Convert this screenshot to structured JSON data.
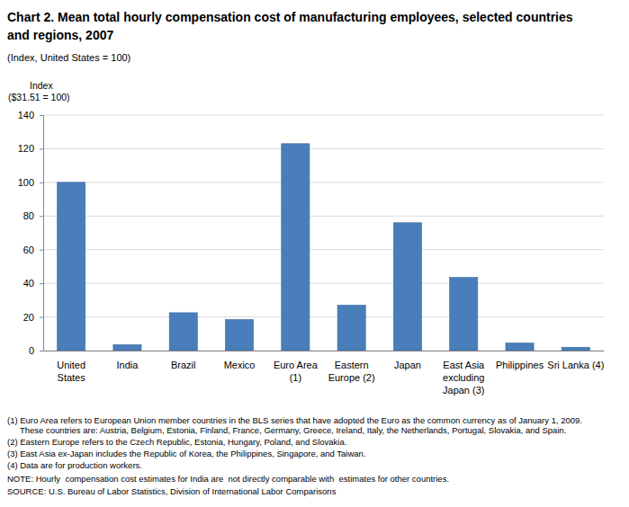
{
  "chart_data": {
    "type": "bar",
    "title": "Chart 2.  Mean total hourly compensation cost of manufacturing employees, selected countries\nand regions, 2007",
    "subtitle": "(Index, United States = 100)",
    "y_label": [
      "Index",
      "($31.51 = 100)"
    ],
    "categories": [
      "United\nStates",
      "India",
      "Brazil",
      "Mexico",
      "Euro Area\n(1)",
      "Eastern\nEurope (2)",
      "Japan",
      "East Asia\nexcluding\nJapan (3)",
      "Philippines",
      "Sri Lanka (4)"
    ],
    "values": [
      100,
      3.5,
      22.5,
      18.5,
      123,
      27,
      76,
      43.5,
      4.5,
      2
    ],
    "color": "#4a7ebb",
    "ylim": [
      0,
      140
    ],
    "yticks": [
      0,
      20,
      40,
      60,
      80,
      100,
      120,
      140
    ],
    "grid": true,
    "notes": [
      "(1) Euro Area refers to European Union member countries in the BLS series that have adopted the Euro as the common currency as of January 1, 2009.",
      "These countries are: Austria, Belgium, Estonia, Finland, France, Germany, Greece, Ireland, Italy, the Netherlands, Portugal, Slovakia, and Spain.",
      "(2) Eastern Europe refers to the Czech Republic, Estonia, Hungary, Poland, and Slovakia.",
      "(3) East Asia ex-Japan includes the Republic of Korea, the Philippines, Singapore, and Taiwan.",
      "(4) Data are for production workers.",
      "NOTE: Hourly  compensation cost estimates for India are  not directly comparable with  estimates for other countries.",
      "SOURCE: U.S. Bureau of Labor Statistics, Division of International Labor Comparisons"
    ]
  }
}
